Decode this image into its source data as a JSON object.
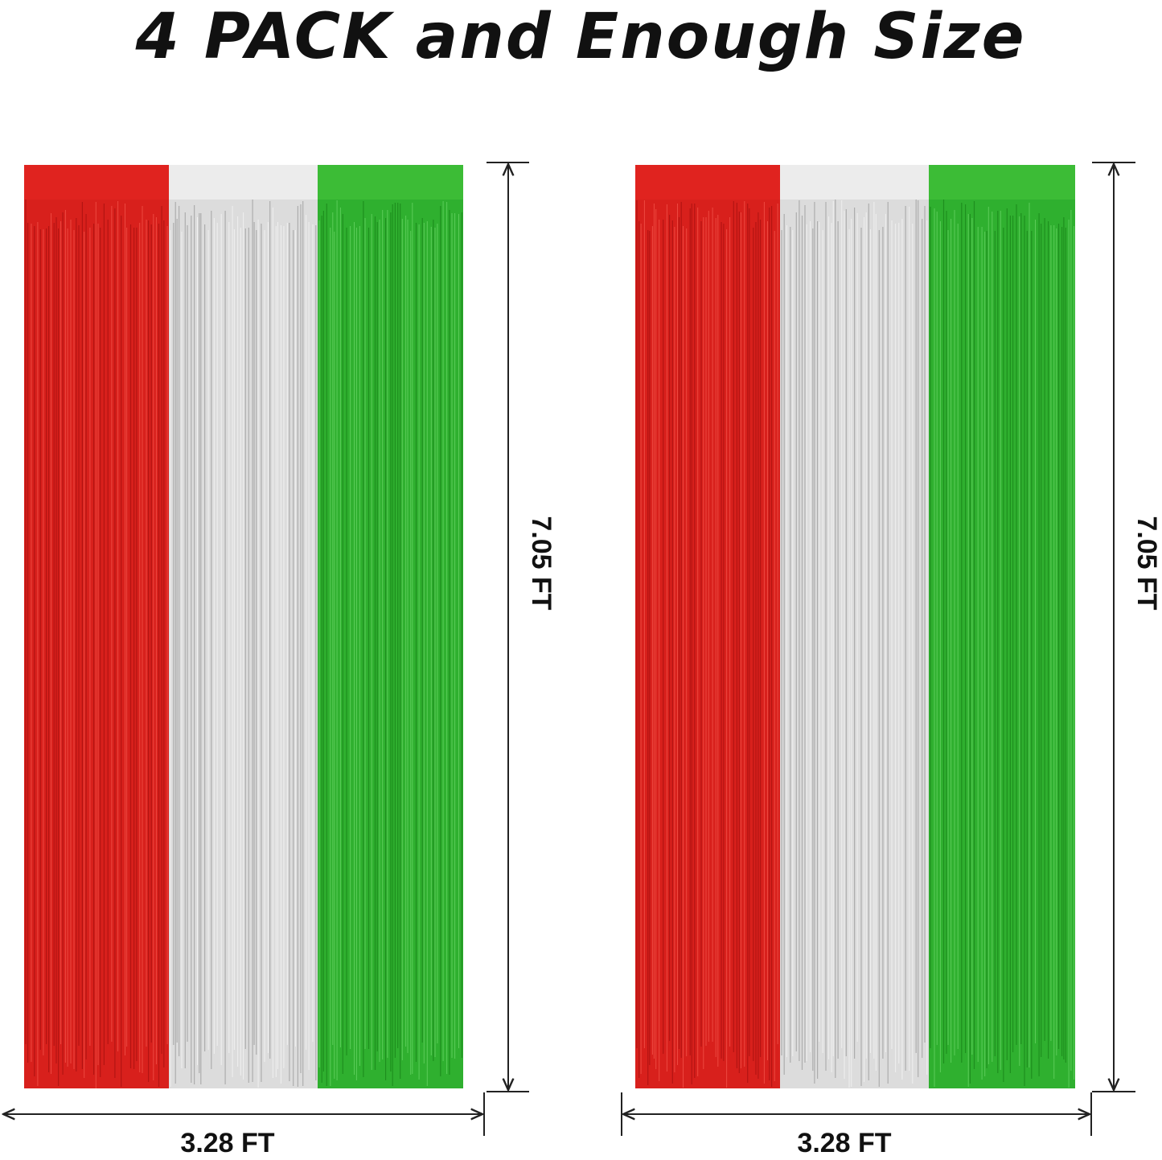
{
  "header": {
    "title": "4 PACK and Enough Size"
  },
  "products": [
    {
      "width_label": "3.28 FT",
      "height_label": "7.05 FT"
    },
    {
      "width_label": "3.28 FT",
      "height_label": "7.05 FT"
    }
  ]
}
